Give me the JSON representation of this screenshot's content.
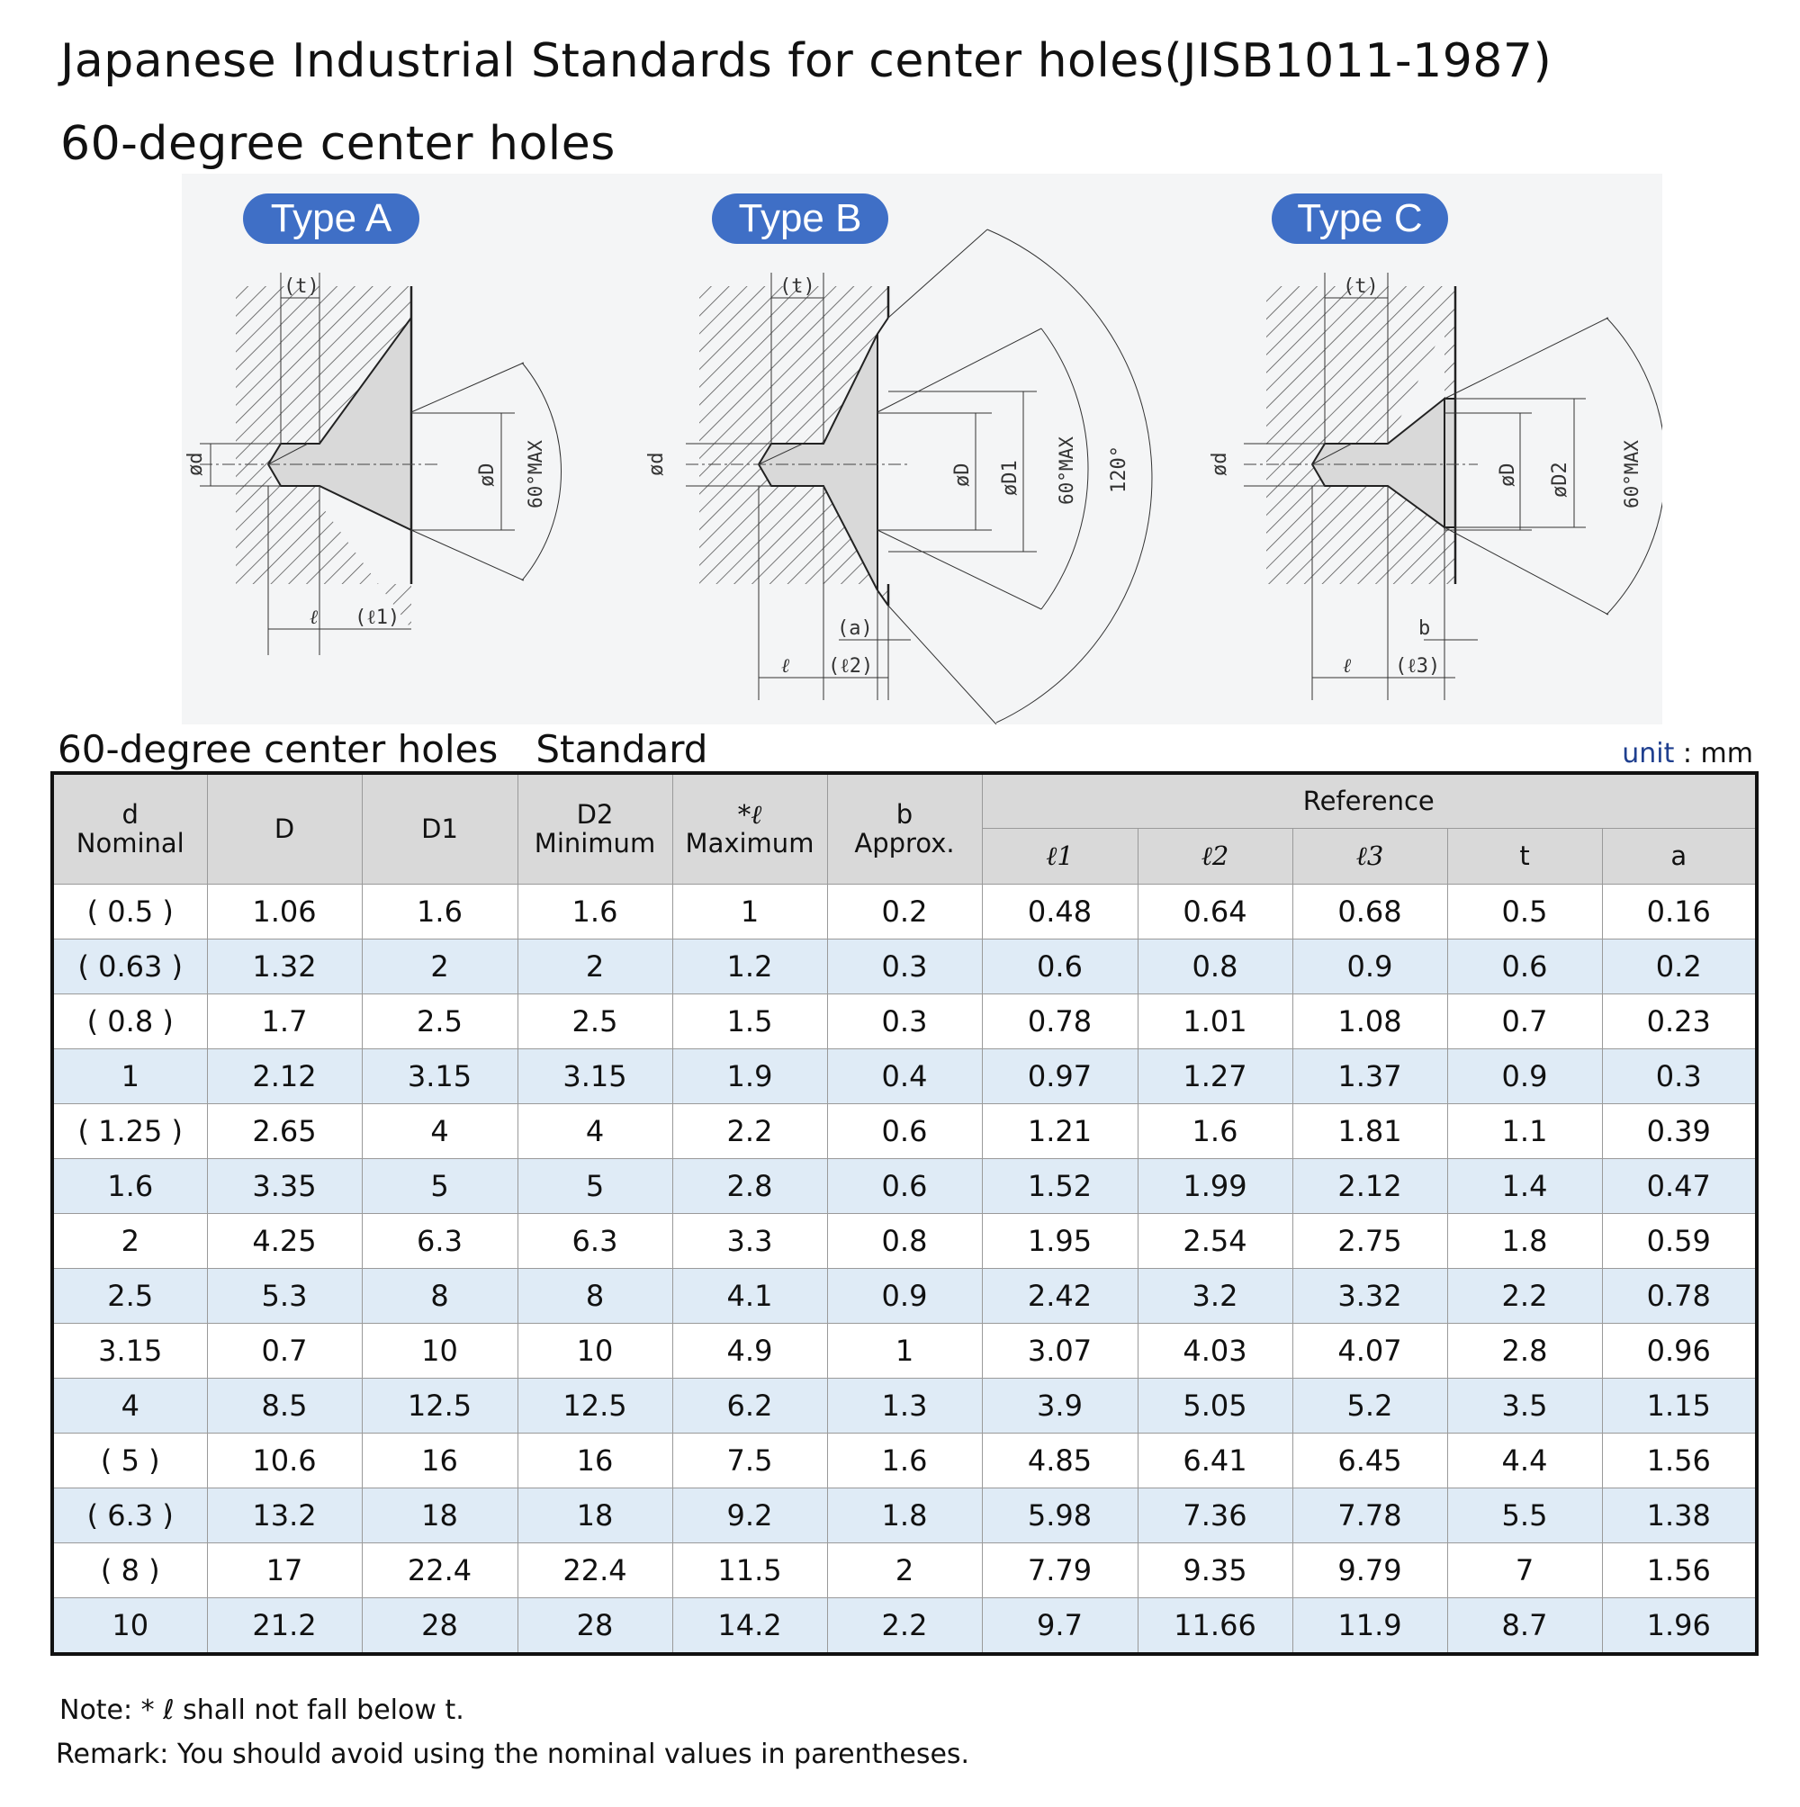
{
  "title": "Japanese Industrial Standards for center holes(JISB1011-1987)",
  "subtitle": "60-degree center holes",
  "diagram": {
    "types": [
      "Type A",
      "Type B",
      "Type C"
    ],
    "labels": {
      "t": "(t)",
      "d": "ød",
      "D": "øD",
      "D1": "øD1",
      "D2": "øD2",
      "angle60": "60°MAX",
      "angle120": "120°",
      "l": "ℓ",
      "l1": "(ℓ1)",
      "l2": "(ℓ2)",
      "l3": "(ℓ3)",
      "a": "(a)",
      "b": "b"
    }
  },
  "table_title": {
    "left": "60-degree center holes",
    "right": "Standard"
  },
  "unit": {
    "word": "unit",
    "rest": " : mm"
  },
  "table": {
    "headers": {
      "d": [
        "d",
        "Nominal"
      ],
      "D": "D",
      "D1": "D1",
      "D2": [
        "D2",
        "Minimum"
      ],
      "l": [
        "*ℓ",
        "Maximum"
      ],
      "b": [
        "b",
        "Approx."
      ],
      "reference": "Reference",
      "ref_cols": [
        "ℓ1",
        "ℓ2",
        "ℓ3",
        "t",
        "a"
      ]
    },
    "rows": [
      [
        "( 0.5 )",
        "1.06",
        "1.6",
        "1.6",
        "1",
        "0.2",
        "0.48",
        "0.64",
        "0.68",
        "0.5",
        "0.16"
      ],
      [
        "( 0.63 )",
        "1.32",
        "2",
        "2",
        "1.2",
        "0.3",
        "0.6",
        "0.8",
        "0.9",
        "0.6",
        "0.2"
      ],
      [
        "( 0.8 )",
        "1.7",
        "2.5",
        "2.5",
        "1.5",
        "0.3",
        "0.78",
        "1.01",
        "1.08",
        "0.7",
        "0.23"
      ],
      [
        "1",
        "2.12",
        "3.15",
        "3.15",
        "1.9",
        "0.4",
        "0.97",
        "1.27",
        "1.37",
        "0.9",
        "0.3"
      ],
      [
        "( 1.25 )",
        "2.65",
        "4",
        "4",
        "2.2",
        "0.6",
        "1.21",
        "1.6",
        "1.81",
        "1.1",
        "0.39"
      ],
      [
        "1.6",
        "3.35",
        "5",
        "5",
        "2.8",
        "0.6",
        "1.52",
        "1.99",
        "2.12",
        "1.4",
        "0.47"
      ],
      [
        "2",
        "4.25",
        "6.3",
        "6.3",
        "3.3",
        "0.8",
        "1.95",
        "2.54",
        "2.75",
        "1.8",
        "0.59"
      ],
      [
        "2.5",
        "5.3",
        "8",
        "8",
        "4.1",
        "0.9",
        "2.42",
        "3.2",
        "3.32",
        "2.2",
        "0.78"
      ],
      [
        "3.15",
        "0.7",
        "10",
        "10",
        "4.9",
        "1",
        "3.07",
        "4.03",
        "4.07",
        "2.8",
        "0.96"
      ],
      [
        "4",
        "8.5",
        "12.5",
        "12.5",
        "6.2",
        "1.3",
        "3.9",
        "5.05",
        "5.2",
        "3.5",
        "1.15"
      ],
      [
        "( 5 )",
        "10.6",
        "16",
        "16",
        "7.5",
        "1.6",
        "4.85",
        "6.41",
        "6.45",
        "4.4",
        "1.56"
      ],
      [
        "( 6.3 )",
        "13.2",
        "18",
        "18",
        "9.2",
        "1.8",
        "5.98",
        "7.36",
        "7.78",
        "5.5",
        "1.38"
      ],
      [
        "( 8 )",
        "17",
        "22.4",
        "22.4",
        "11.5",
        "2",
        "7.79",
        "9.35",
        "9.79",
        "7",
        "1.56"
      ],
      [
        "10",
        "21.2",
        "28",
        "28",
        "14.2",
        "2.2",
        "9.7",
        "11.66",
        "11.9",
        "8.7",
        "1.96"
      ]
    ]
  },
  "note": "Note:  * ℓ shall not fall below t.",
  "remark": "Remark: You should avoid using the nominal values in parentheses."
}
